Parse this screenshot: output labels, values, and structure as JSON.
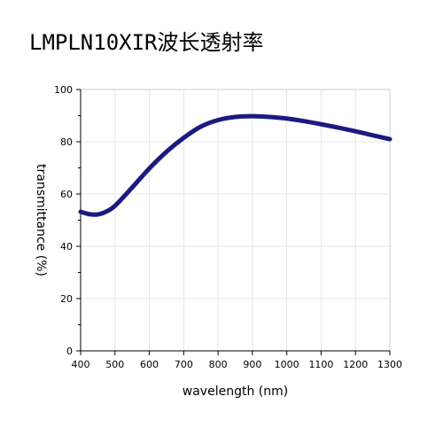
{
  "title": "LMPLN10XIR波长透射率",
  "chart_data": {
    "type": "line",
    "title": "LMPLN10XIR波长透射率",
    "xlabel": "wavelength (nm)",
    "ylabel": "transmittance (%)",
    "xlim": [
      400,
      1300
    ],
    "ylim": [
      0,
      100
    ],
    "xticks": [
      400,
      500,
      600,
      700,
      800,
      900,
      1000,
      1100,
      1200,
      1300
    ],
    "yticks": [
      0,
      20,
      40,
      60,
      80,
      100
    ],
    "grid": true,
    "legend": "none",
    "line_color": "#1a1a80",
    "grid_color": "#e5e5e5",
    "series": [
      {
        "x": [
          400,
          425,
          450,
          475,
          500,
          550,
          600,
          650,
          700,
          750,
          800,
          850,
          900,
          950,
          1000,
          1050,
          1100,
          1150,
          1200,
          1250,
          1300
        ],
        "values": [
          53.2,
          52.3,
          52.2,
          53.3,
          55.5,
          62.5,
          69.8,
          76.2,
          81.5,
          85.8,
          88.3,
          89.5,
          89.8,
          89.5,
          88.9,
          87.9,
          86.7,
          85.4,
          84.0,
          82.5,
          81.0
        ]
      }
    ]
  }
}
